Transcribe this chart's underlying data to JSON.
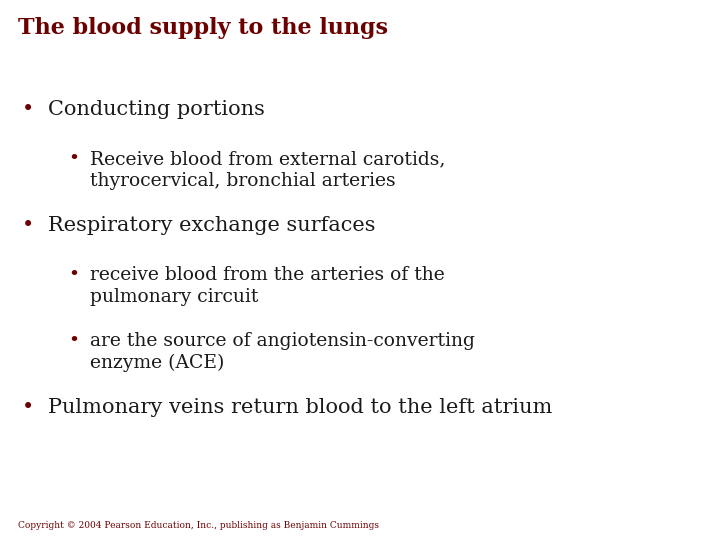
{
  "title": "The blood supply to the lungs",
  "title_color": "#6B0000",
  "title_fontsize": 16,
  "title_font": "serif",
  "title_bold": true,
  "bg_color": "#FFFFFF",
  "header_line_color": "#B0B0B0",
  "bullet_color": "#6B0000",
  "text_color": "#1A1A1A",
  "copyright": "Copyright © 2004 Pearson Education, Inc., publishing as Benjamin Cummings",
  "copyright_color": "#6B0000",
  "copyright_fontsize": 6.5,
  "items": [
    {
      "level": 1,
      "text": "Conducting portions",
      "fontsize": 15
    },
    {
      "level": 2,
      "text": "Receive blood from external carotids,\nthyrocervical, bronchial arteries",
      "fontsize": 13.5
    },
    {
      "level": 1,
      "text": "Respiratory exchange surfaces",
      "fontsize": 15
    },
    {
      "level": 2,
      "text": "receive blood from the arteries of the\npulmonary circuit",
      "fontsize": 13.5
    },
    {
      "level": 2,
      "text": "are the source of angiotensin-converting\nenzyme (ACE)",
      "fontsize": 13.5
    },
    {
      "level": 1,
      "text": "Pulmonary veins return blood to the left atrium",
      "fontsize": 15
    }
  ]
}
